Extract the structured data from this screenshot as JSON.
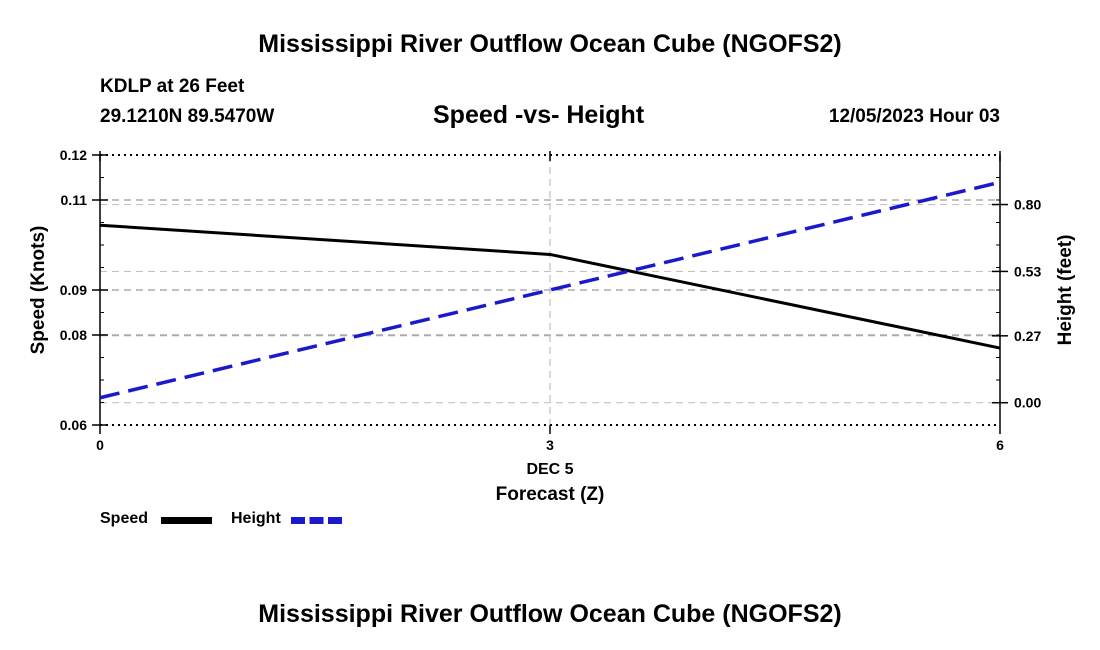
{
  "header": {
    "title": "Mississippi River Outflow Ocean Cube (NGOFS2)",
    "station": "KDLP at 26 Feet",
    "coords": "29.1210N  89.5470W",
    "subtitle": "Speed -vs- Height",
    "datetime": "12/05/2023 Hour 03"
  },
  "footer": {
    "title": "Mississippi River Outflow Ocean Cube (NGOFS2)"
  },
  "legend": {
    "speed_label": "Speed",
    "height_label": "Height"
  },
  "chart_data": {
    "type": "line",
    "title": "Speed -vs- Height",
    "xlabel": "Forecast (Z)",
    "x_date_label": "DEC 5",
    "ylabel": "Speed (Knots)",
    "y2label": "Height (feet)",
    "xlim": [
      0,
      6
    ],
    "ylim": [
      0.06,
      0.12
    ],
    "y2lim": [
      -0.09,
      1.0
    ],
    "x_ticks": [
      "0",
      "3",
      "6"
    ],
    "x_tick_values": [
      0,
      3,
      6
    ],
    "y_ticks": [
      "0.06",
      "0.08",
      "0.09",
      "0.11",
      "0.12"
    ],
    "y_tick_values": [
      0.06,
      0.08,
      0.09,
      0.11,
      0.12
    ],
    "y2_ticks": [
      "0.00",
      "0.27",
      "0.53",
      "0.80"
    ],
    "y2_tick_values": [
      0.0,
      0.27,
      0.53,
      0.8
    ],
    "grid": true,
    "series": [
      {
        "name": "Speed",
        "axis": "left",
        "color": "#000000",
        "style": "solid",
        "x": [
          0,
          3,
          6
        ],
        "values": [
          0.1044,
          0.0979,
          0.0771
        ]
      },
      {
        "name": "Height",
        "axis": "right",
        "color": "#1a1acc",
        "style": "dashed",
        "x": [
          0,
          6
        ],
        "values": [
          0.02,
          0.89
        ]
      }
    ]
  }
}
